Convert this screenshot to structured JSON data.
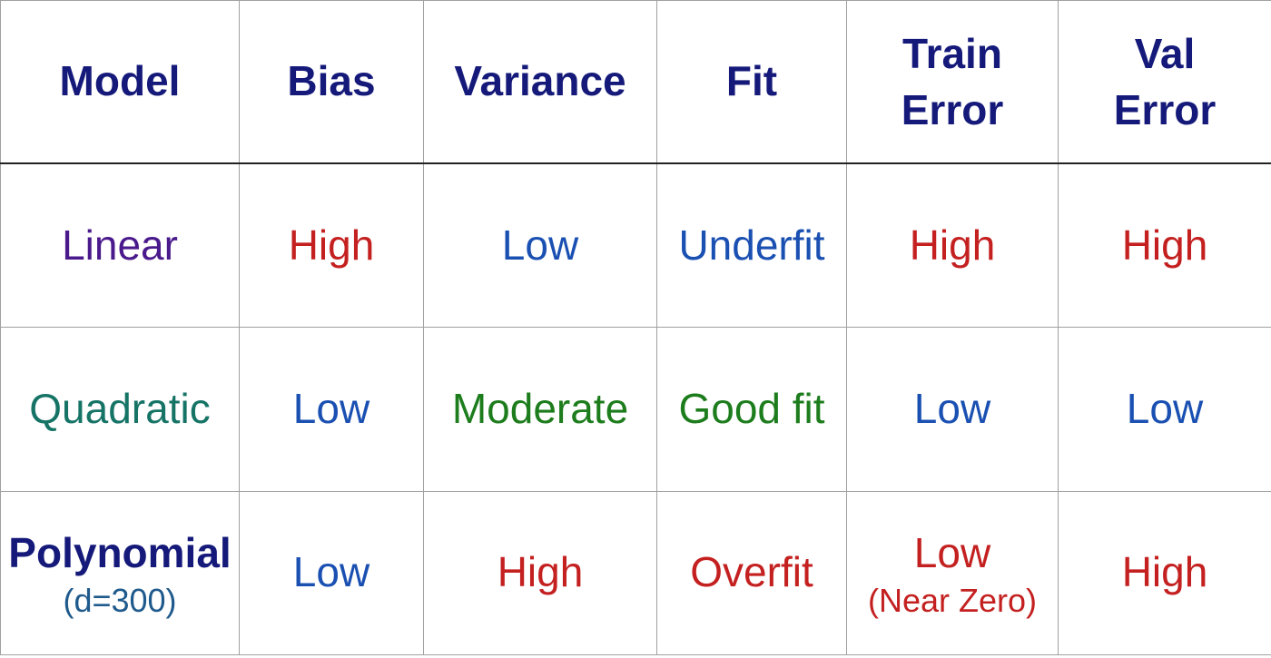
{
  "table": {
    "header": [
      "Model",
      "Bias",
      "Variance",
      "Fit",
      "Train Error",
      "Val Error"
    ],
    "rows": [
      [
        "Linear",
        "High",
        "Low",
        "Underfit",
        "High",
        "High"
      ],
      [
        "Quadratic",
        "Low",
        "Moderate",
        "Good fit",
        "Low",
        "Low"
      ],
      [
        {
          "text": "Polynomial",
          "note": "(d=300)"
        },
        "Low",
        "High",
        "Overfit",
        {
          "text": "Low",
          "note": "(Near Zero)"
        },
        "High"
      ]
    ]
  }
}
